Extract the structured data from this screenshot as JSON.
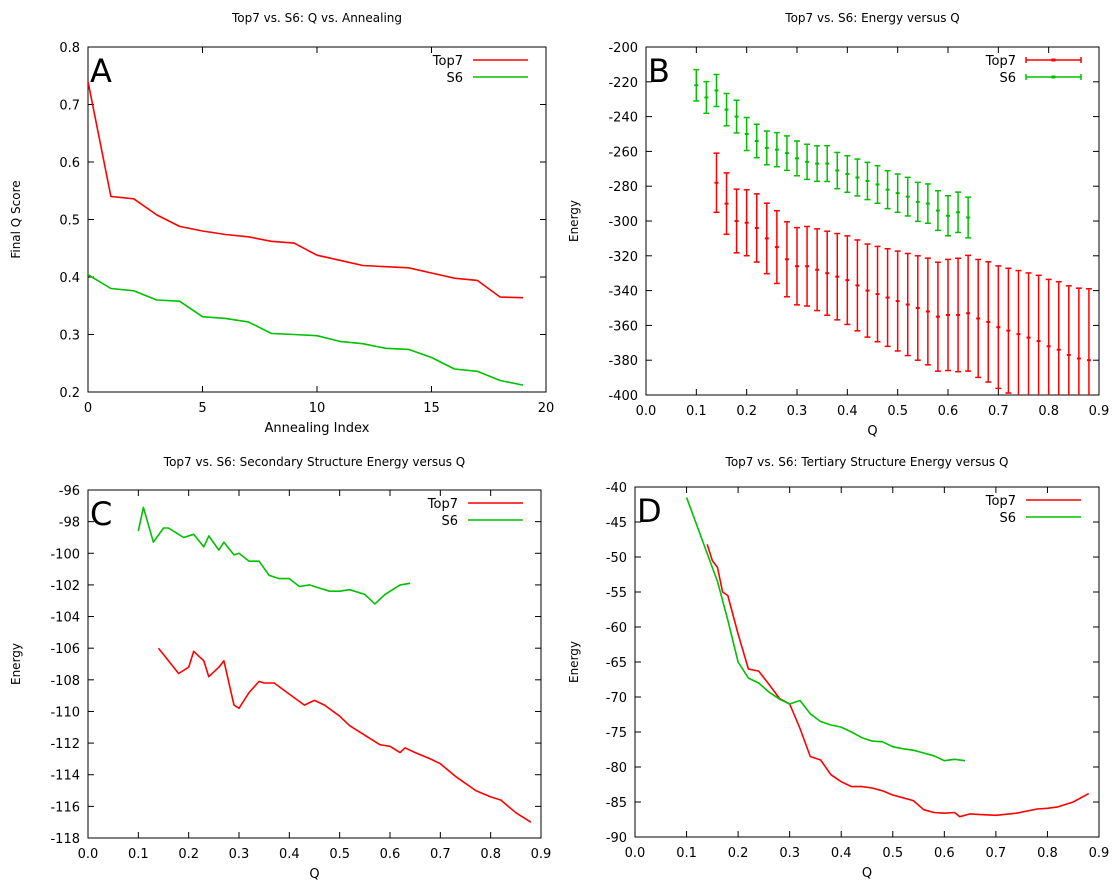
{
  "colors": {
    "top7": "#ff0000",
    "s6": "#00c000",
    "axis": "#000000"
  },
  "chart_data": [
    {
      "panel": "A",
      "type": "line",
      "title": "Top7 vs. S6: Q vs. Annealing",
      "xlabel": "Annealing Index",
      "ylabel": "Final Q Score",
      "xlim": [
        0,
        20
      ],
      "ylim": [
        0.2,
        0.8
      ],
      "xticks": [
        0,
        5,
        10,
        15,
        20
      ],
      "yticks": [
        0.2,
        0.3,
        0.4,
        0.5,
        0.6,
        0.7,
        0.8
      ],
      "xdec": 0,
      "ydec": 1,
      "legend": "top-right",
      "series": [
        {
          "name": "Top7",
          "color": "#ff0000",
          "x": [
            0,
            1,
            2,
            3,
            4,
            5,
            6,
            7,
            8,
            9,
            10,
            11,
            12,
            13,
            14,
            15,
            16,
            17,
            18,
            19
          ],
          "y": [
            0.74,
            0.54,
            0.536,
            0.508,
            0.488,
            0.48,
            0.474,
            0.47,
            0.462,
            0.459,
            0.438,
            0.429,
            0.42,
            0.418,
            0.416,
            0.407,
            0.398,
            0.394,
            0.365,
            0.364
          ]
        },
        {
          "name": "S6",
          "color": "#00c000",
          "x": [
            0,
            1,
            2,
            3,
            4,
            5,
            6,
            7,
            8,
            9,
            10,
            11,
            12,
            13,
            14,
            15,
            16,
            17,
            18,
            19
          ],
          "y": [
            0.404,
            0.38,
            0.376,
            0.36,
            0.358,
            0.331,
            0.328,
            0.322,
            0.302,
            0.3,
            0.298,
            0.288,
            0.284,
            0.276,
            0.274,
            0.26,
            0.24,
            0.236,
            0.22,
            0.212
          ]
        }
      ]
    },
    {
      "panel": "B",
      "type": "errorbar",
      "title": "Top7 vs. S6: Energy versus Q",
      "xlabel": "Q",
      "ylabel": "Energy",
      "xlim": [
        0,
        0.9
      ],
      "ylim": [
        -400,
        -200
      ],
      "xticks": [
        0,
        0.1,
        0.2,
        0.3,
        0.4,
        0.5,
        0.6,
        0.7,
        0.8,
        0.9
      ],
      "yticks": [
        -400,
        -380,
        -360,
        -340,
        -320,
        -300,
        -280,
        -260,
        -240,
        -220,
        -200
      ],
      "xdec": 1,
      "ydec": 0,
      "legend": "top-right",
      "series": [
        {
          "name": "Top7",
          "color": "#ff0000",
          "err_start": 17,
          "err_step": 0.65,
          "err_start_step": 0.14,
          "x": [
            0.14,
            0.16,
            0.18,
            0.2,
            0.22,
            0.24,
            0.26,
            0.28,
            0.3,
            0.32,
            0.34,
            0.36,
            0.38,
            0.4,
            0.42,
            0.44,
            0.46,
            0.48,
            0.5,
            0.52,
            0.54,
            0.56,
            0.58,
            0.6,
            0.62,
            0.64,
            0.66,
            0.68,
            0.7,
            0.72,
            0.74,
            0.76,
            0.78,
            0.8,
            0.82,
            0.84,
            0.86,
            0.88
          ],
          "y": [
            -278,
            -290,
            -300,
            -301,
            -304,
            -310,
            -315,
            -322,
            -326,
            -326,
            -328,
            -330,
            -332,
            -334,
            -337,
            -340,
            -342,
            -344,
            -346,
            -348,
            -350,
            -352,
            -355,
            -354,
            -354,
            -353,
            -356,
            -358,
            -361,
            -363,
            -365,
            -367,
            -369,
            -372,
            -374,
            -377,
            -379,
            -380
          ]
        },
        {
          "name": "S6",
          "color": "#00c000",
          "err_start": 9,
          "err_step": 0.1,
          "err_start_step": 0.1,
          "x": [
            0.1,
            0.12,
            0.14,
            0.16,
            0.18,
            0.2,
            0.22,
            0.24,
            0.26,
            0.28,
            0.3,
            0.32,
            0.34,
            0.36,
            0.38,
            0.4,
            0.42,
            0.44,
            0.46,
            0.48,
            0.5,
            0.52,
            0.54,
            0.56,
            0.58,
            0.6,
            0.62,
            0.64
          ],
          "y": [
            -222,
            -229,
            -225,
            -236,
            -240,
            -250,
            -254,
            -258,
            -259,
            -261,
            -264,
            -266,
            -267,
            -267,
            -271,
            -273,
            -275,
            -277,
            -279,
            -282,
            -284,
            -286,
            -289,
            -290,
            -294,
            -297,
            -295,
            -298
          ]
        }
      ]
    },
    {
      "panel": "C",
      "type": "line",
      "title": "Top7 vs. S6: Secondary Structure Energy versus Q",
      "xlabel": "Q",
      "ylabel": "Energy",
      "xlim": [
        0,
        0.9
      ],
      "ylim": [
        -118,
        -96
      ],
      "xticks": [
        0,
        0.1,
        0.2,
        0.3,
        0.4,
        0.5,
        0.6,
        0.7,
        0.8,
        0.9
      ],
      "yticks": [
        -118,
        -116,
        -114,
        -112,
        -110,
        -108,
        -106,
        -104,
        -102,
        -100,
        -98,
        -96
      ],
      "xdec": 1,
      "ydec": 0,
      "legend": "top-right",
      "series": [
        {
          "name": "Top7",
          "color": "#ff0000",
          "x": [
            0.14,
            0.16,
            0.18,
            0.2,
            0.21,
            0.23,
            0.24,
            0.26,
            0.27,
            0.29,
            0.3,
            0.32,
            0.34,
            0.35,
            0.37,
            0.4,
            0.43,
            0.45,
            0.47,
            0.5,
            0.52,
            0.55,
            0.58,
            0.6,
            0.62,
            0.63,
            0.65,
            0.68,
            0.7,
            0.73,
            0.77,
            0.8,
            0.82,
            0.85,
            0.88
          ],
          "y": [
            -106,
            -106.8,
            -107.6,
            -107.2,
            -106.2,
            -106.8,
            -107.8,
            -107.2,
            -106.8,
            -109.6,
            -109.8,
            -108.8,
            -108.1,
            -108.2,
            -108.2,
            -108.9,
            -109.6,
            -109.3,
            -109.6,
            -110.3,
            -110.9,
            -111.5,
            -112.1,
            -112.2,
            -112.6,
            -112.3,
            -112.6,
            -113,
            -113.3,
            -114.1,
            -115,
            -115.4,
            -115.6,
            -116.4,
            -117
          ]
        },
        {
          "name": "S6",
          "color": "#00c000",
          "x": [
            0.1,
            0.11,
            0.13,
            0.15,
            0.16,
            0.18,
            0.19,
            0.21,
            0.23,
            0.24,
            0.26,
            0.27,
            0.29,
            0.3,
            0.32,
            0.34,
            0.36,
            0.38,
            0.4,
            0.42,
            0.44,
            0.46,
            0.48,
            0.5,
            0.52,
            0.55,
            0.57,
            0.59,
            0.62,
            0.64
          ],
          "y": [
            -98.6,
            -97.1,
            -99.3,
            -98.4,
            -98.4,
            -98.8,
            -99,
            -98.8,
            -99.6,
            -98.9,
            -99.8,
            -99.3,
            -100.1,
            -100,
            -100.5,
            -100.5,
            -101.4,
            -101.6,
            -101.6,
            -102.1,
            -102,
            -102.2,
            -102.4,
            -102.4,
            -102.3,
            -102.6,
            -103.2,
            -102.6,
            -102,
            -101.9
          ]
        }
      ]
    },
    {
      "panel": "D",
      "type": "line",
      "title": "Top7 vs. S6: Tertiary Structure Energy versus Q",
      "xlabel": "Q",
      "ylabel": "Energy",
      "xlim": [
        0,
        0.9
      ],
      "ylim": [
        -90,
        -40
      ],
      "xticks": [
        0,
        0.1,
        0.2,
        0.3,
        0.4,
        0.5,
        0.6,
        0.7,
        0.8,
        0.9
      ],
      "yticks": [
        -90,
        -85,
        -80,
        -75,
        -70,
        -65,
        -60,
        -55,
        -50,
        -45,
        -40
      ],
      "xdec": 1,
      "ydec": 0,
      "legend": "top-right",
      "series": [
        {
          "name": "Top7",
          "color": "#ff0000",
          "x": [
            0.14,
            0.15,
            0.16,
            0.17,
            0.18,
            0.2,
            0.22,
            0.24,
            0.26,
            0.28,
            0.3,
            0.32,
            0.34,
            0.36,
            0.38,
            0.4,
            0.42,
            0.44,
            0.46,
            0.48,
            0.5,
            0.52,
            0.54,
            0.56,
            0.58,
            0.6,
            0.62,
            0.63,
            0.65,
            0.67,
            0.7,
            0.74,
            0.78,
            0.8,
            0.82,
            0.85,
            0.88
          ],
          "y": [
            -48.2,
            -50.5,
            -51.5,
            -55,
            -55.5,
            -61,
            -66,
            -66.3,
            -68.2,
            -70.2,
            -71,
            -74.5,
            -78.5,
            -79,
            -81.1,
            -82.1,
            -82.8,
            -82.8,
            -83,
            -83.4,
            -84,
            -84.4,
            -84.8,
            -86.1,
            -86.5,
            -86.6,
            -86.5,
            -87.1,
            -86.7,
            -86.8,
            -86.9,
            -86.6,
            -86,
            -85.9,
            -85.7,
            -85,
            -83.8
          ]
        },
        {
          "name": "S6",
          "color": "#00c000",
          "x": [
            0.1,
            0.12,
            0.14,
            0.16,
            0.18,
            0.2,
            0.22,
            0.24,
            0.26,
            0.28,
            0.3,
            0.32,
            0.34,
            0.36,
            0.38,
            0.4,
            0.42,
            0.44,
            0.46,
            0.48,
            0.5,
            0.52,
            0.54,
            0.56,
            0.58,
            0.6,
            0.62,
            0.64
          ],
          "y": [
            -41.5,
            -45.5,
            -49.5,
            -53.5,
            -59,
            -65,
            -67.3,
            -68,
            -69.3,
            -70.3,
            -71,
            -70.5,
            -72.4,
            -73.5,
            -74,
            -74.3,
            -75,
            -75.8,
            -76.3,
            -76.4,
            -77.1,
            -77.4,
            -77.6,
            -78,
            -78.4,
            -79.1,
            -78.9,
            -79.1
          ]
        }
      ]
    }
  ]
}
